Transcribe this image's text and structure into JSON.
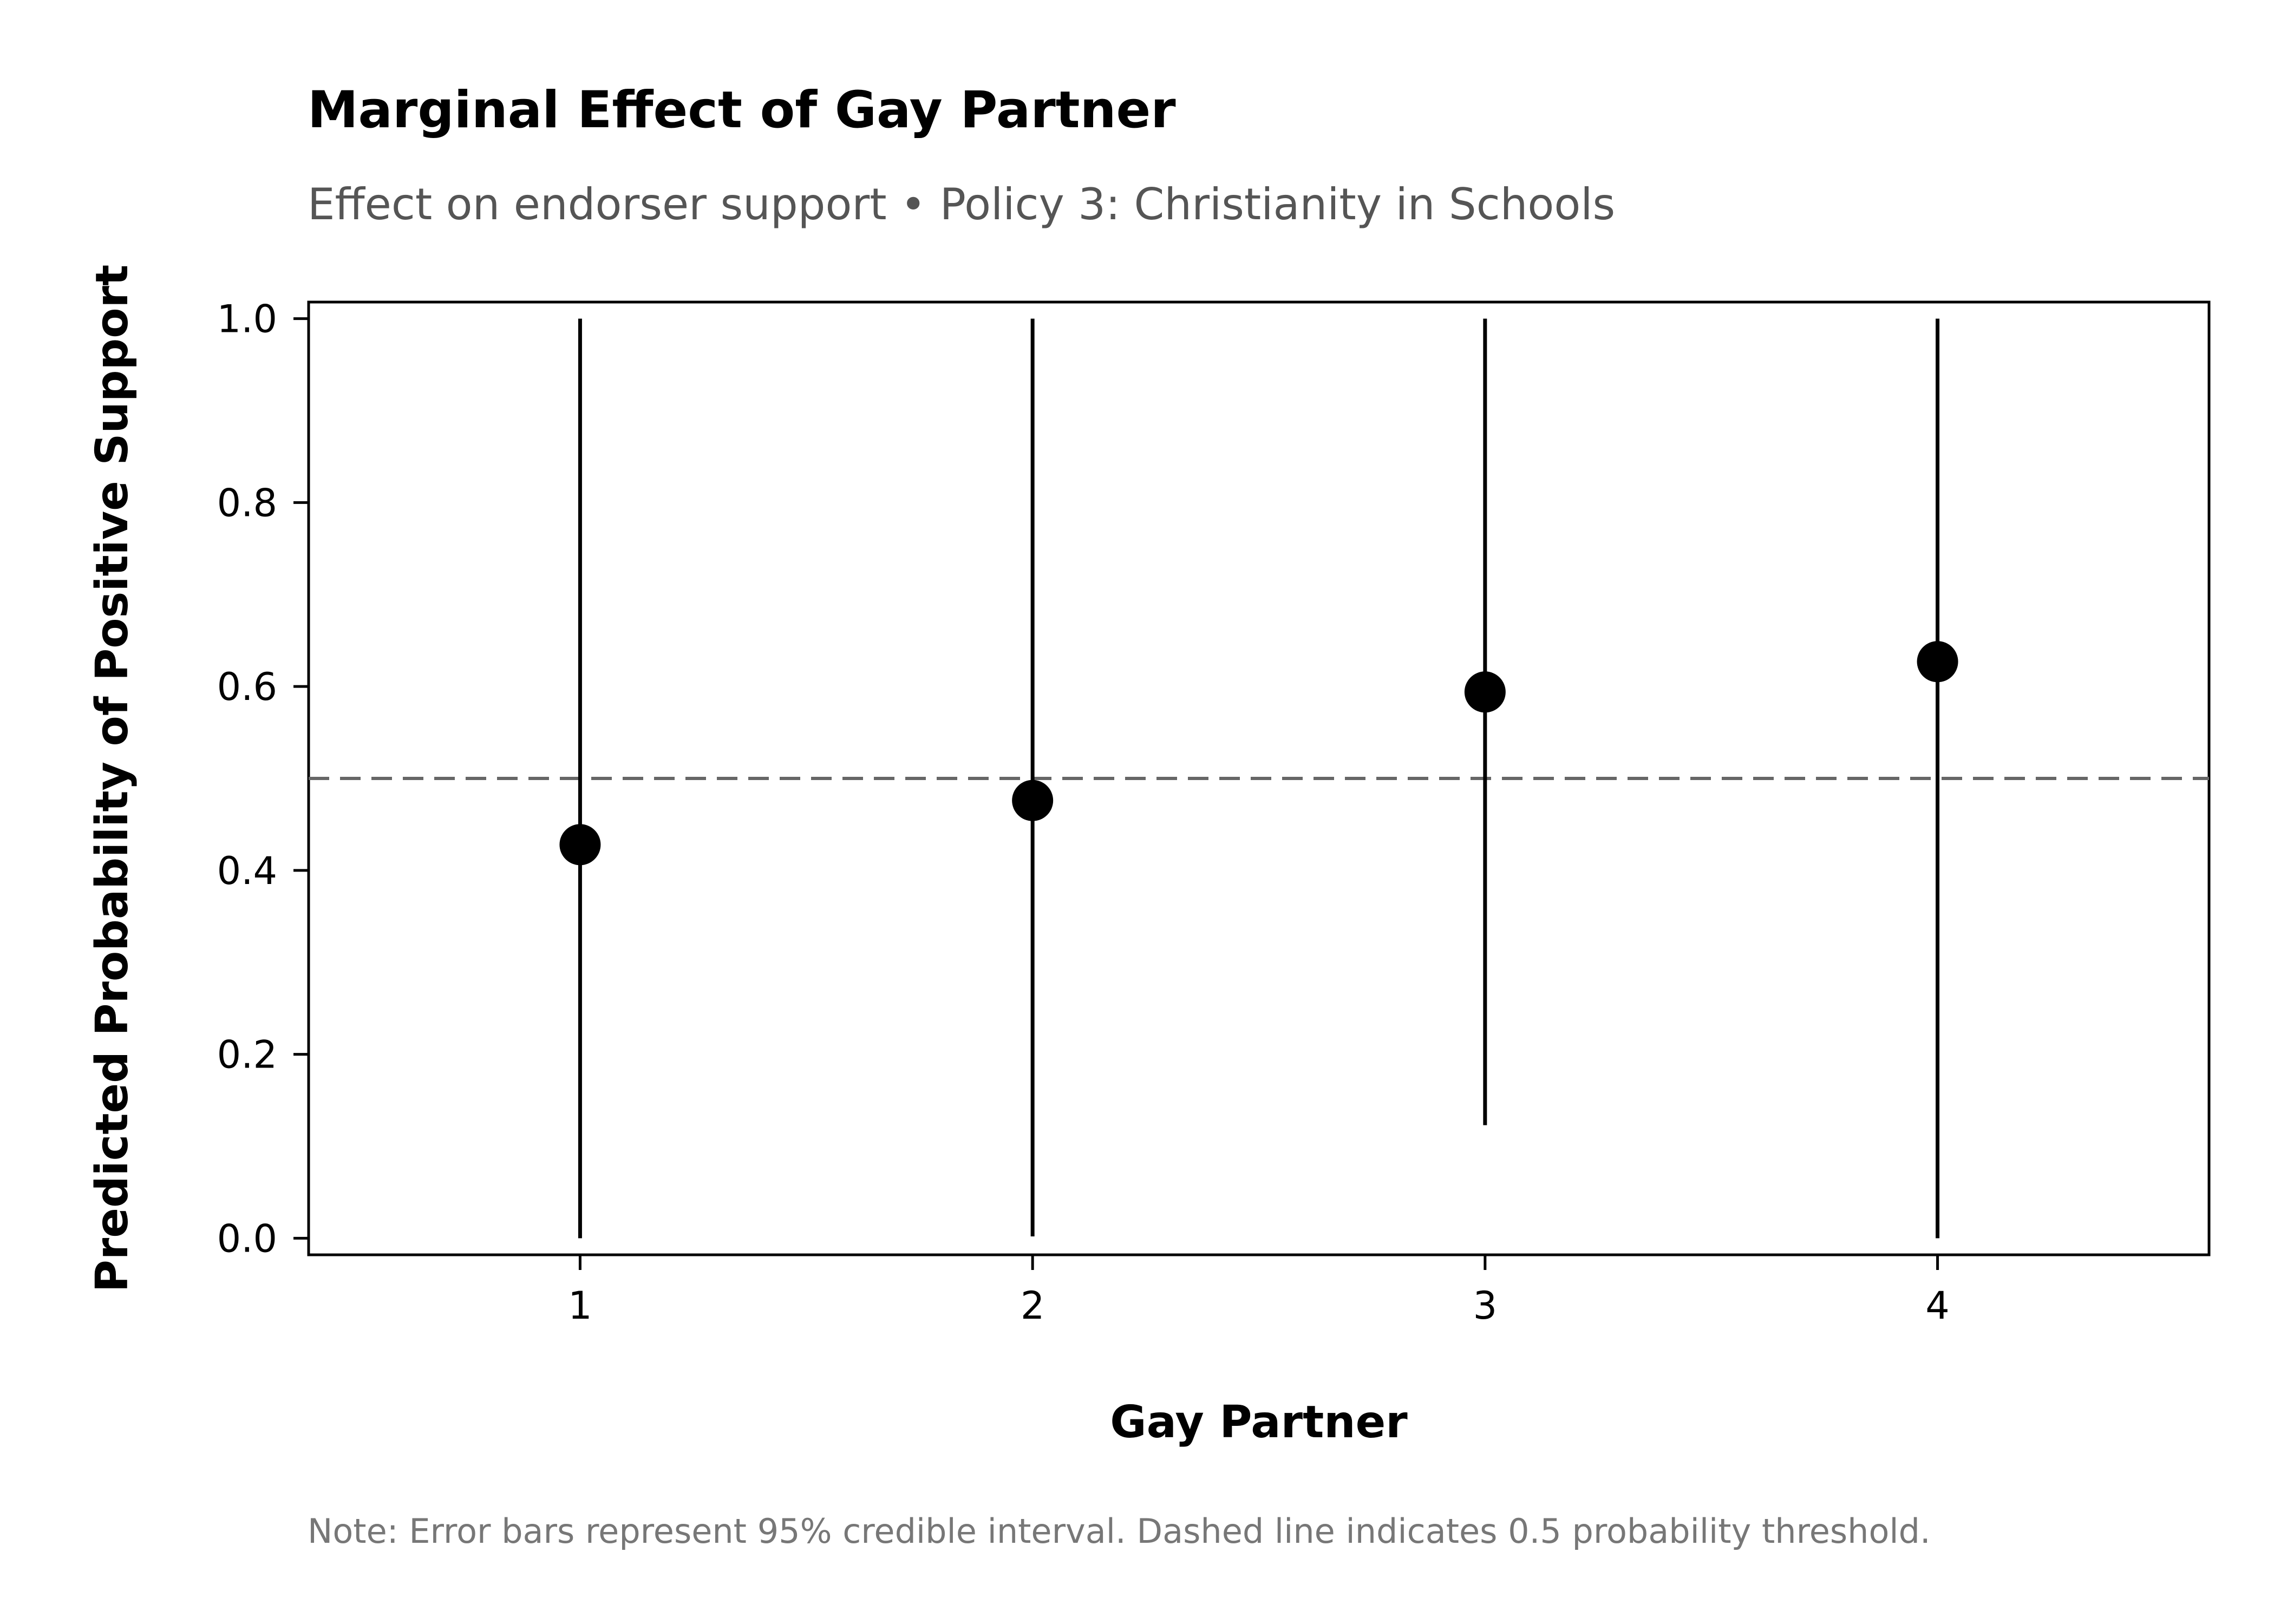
{
  "chart_data": {
    "type": "scatter",
    "title": "Marginal Effect of Gay Partner",
    "subtitle": "Effect on endorser support • Policy 3: Christianity in Schools",
    "xlabel": "Gay Partner",
    "ylabel": "Predicted Probability of Positive Support",
    "x_ticks": [
      "1",
      "2",
      "3",
      "4"
    ],
    "y_ticks": [
      "0.0",
      "0.2",
      "0.4",
      "0.6",
      "0.8",
      "1.0"
    ],
    "xlim": [
      0.4,
      4.6
    ],
    "ylim": [
      -0.018,
      1.018
    ],
    "grid": false,
    "reference_line": {
      "y": 0.5,
      "style": "dashed",
      "color": "#666666"
    },
    "series": [
      {
        "x": [
          1,
          2,
          3,
          4
        ],
        "y": [
          0.428,
          0.476,
          0.594,
          0.627
        ],
        "ci_lower": [
          0.0,
          0.002,
          0.123,
          0.0
        ],
        "ci_upper": [
          1.0,
          1.0,
          1.0,
          1.0
        ]
      }
    ],
    "note": "Note: Error bars represent 95% credible interval. Dashed line indicates 0.5 probability threshold."
  }
}
